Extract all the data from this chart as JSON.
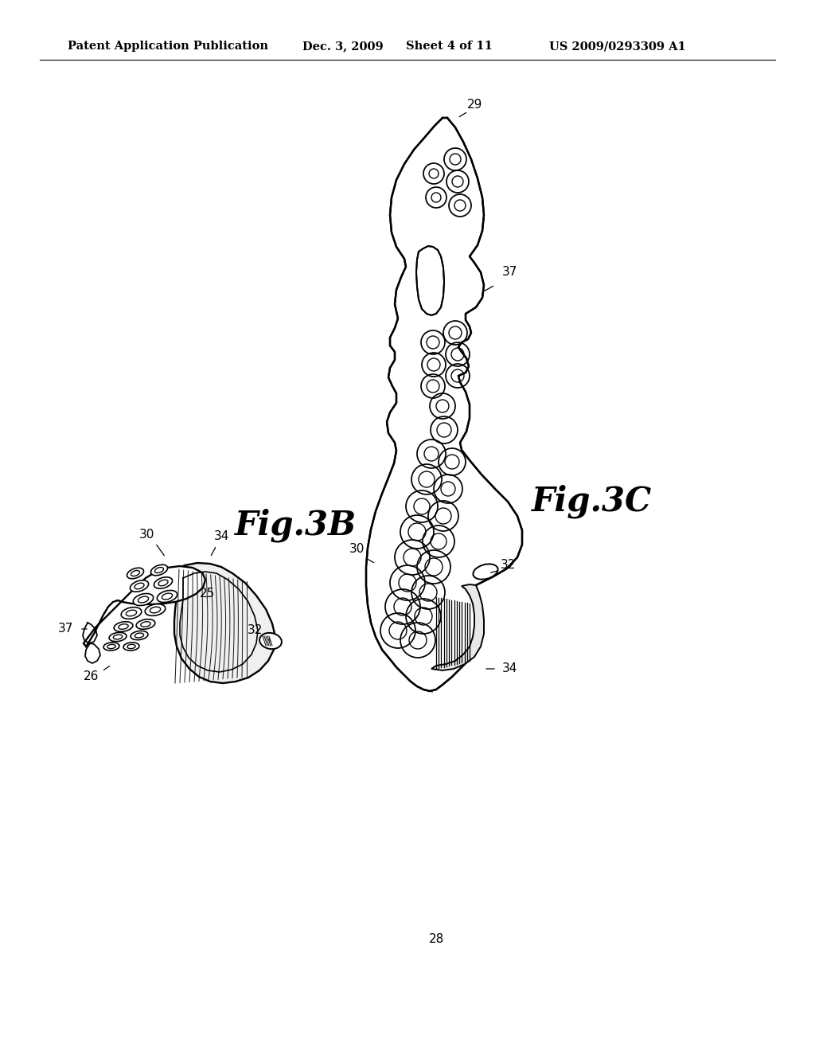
{
  "title_left": "Patent Application Publication",
  "title_date": "Dec. 3, 2009",
  "title_sheet": "Sheet 4 of 11",
  "title_patent": "US 2009/0293309 A1",
  "fig3b_label": "Fig.3B",
  "fig3c_label": "Fig.3C",
  "bg_color": "#ffffff",
  "line_color": "#000000",
  "header_fontsize": 10.5,
  "fig_label_fontsize": 30,
  "ref_num_fontsize": 11
}
